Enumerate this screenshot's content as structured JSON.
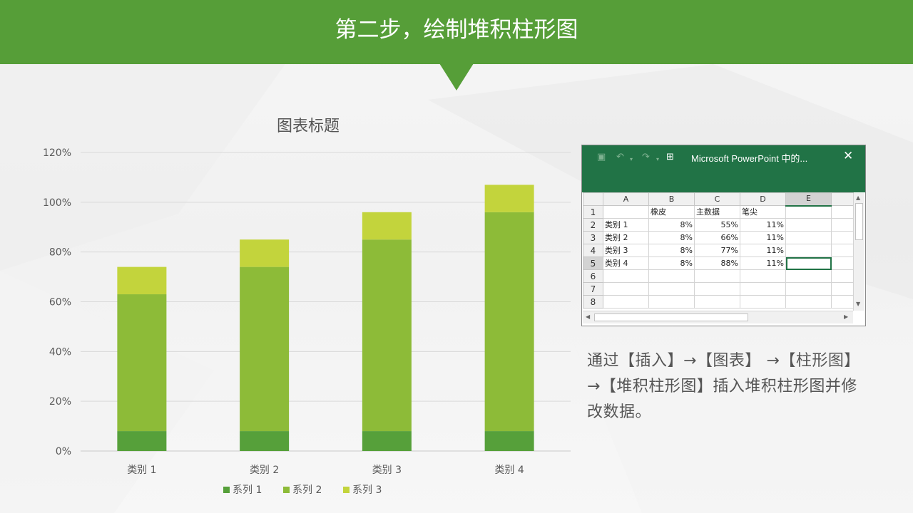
{
  "slide": {
    "title": "第二步，绘制堆积柱形图",
    "description": "通过【插入】→【图表】 →【柱形图】 →【堆积柱形图】插入堆积柱形图并修改数据。"
  },
  "colors": {
    "banner": "#569e38",
    "series": [
      "#56a03a",
      "#8dbb38",
      "#c3d43c"
    ],
    "excel_green": "#217346"
  },
  "chart_data": {
    "type": "bar",
    "stacked": true,
    "title": "图表标题",
    "xlabel": "",
    "ylabel": "",
    "categories": [
      "类别 1",
      "类别 2",
      "类别 3",
      "类别 4"
    ],
    "series": [
      {
        "name": "系列 1",
        "values": [
          0.08,
          0.08,
          0.08,
          0.08
        ]
      },
      {
        "name": "系列 2",
        "values": [
          0.55,
          0.66,
          0.77,
          0.88
        ]
      },
      {
        "name": "系列 3",
        "values": [
          0.11,
          0.11,
          0.11,
          0.11
        ]
      }
    ],
    "ylim": [
      0,
      1.2
    ],
    "yticks": [
      "0%",
      "20%",
      "40%",
      "60%",
      "80%",
      "100%",
      "120%"
    ],
    "grid": true,
    "legend": "bottom"
  },
  "excel": {
    "title": "Microsoft PowerPoint 中的...",
    "close_icon": "close-icon",
    "col_headers": [
      "A",
      "B",
      "C",
      "D",
      "E"
    ],
    "row_numbers": [
      "1",
      "2",
      "3",
      "4",
      "5",
      "6",
      "7",
      "8"
    ],
    "selected_column": "E",
    "selected_row": "5",
    "rows": [
      [
        "",
        "橡皮",
        "主数据",
        "笔尖",
        ""
      ],
      [
        "类别 1",
        "8%",
        "55%",
        "11%",
        ""
      ],
      [
        "类别 2",
        "8%",
        "66%",
        "11%",
        ""
      ],
      [
        "类别 3",
        "8%",
        "77%",
        "11%",
        ""
      ],
      [
        "类别 4",
        "8%",
        "88%",
        "11%",
        ""
      ],
      [
        "",
        "",
        "",
        "",
        ""
      ],
      [
        "",
        "",
        "",
        "",
        ""
      ],
      [
        "",
        "",
        "",
        "",
        ""
      ]
    ]
  }
}
